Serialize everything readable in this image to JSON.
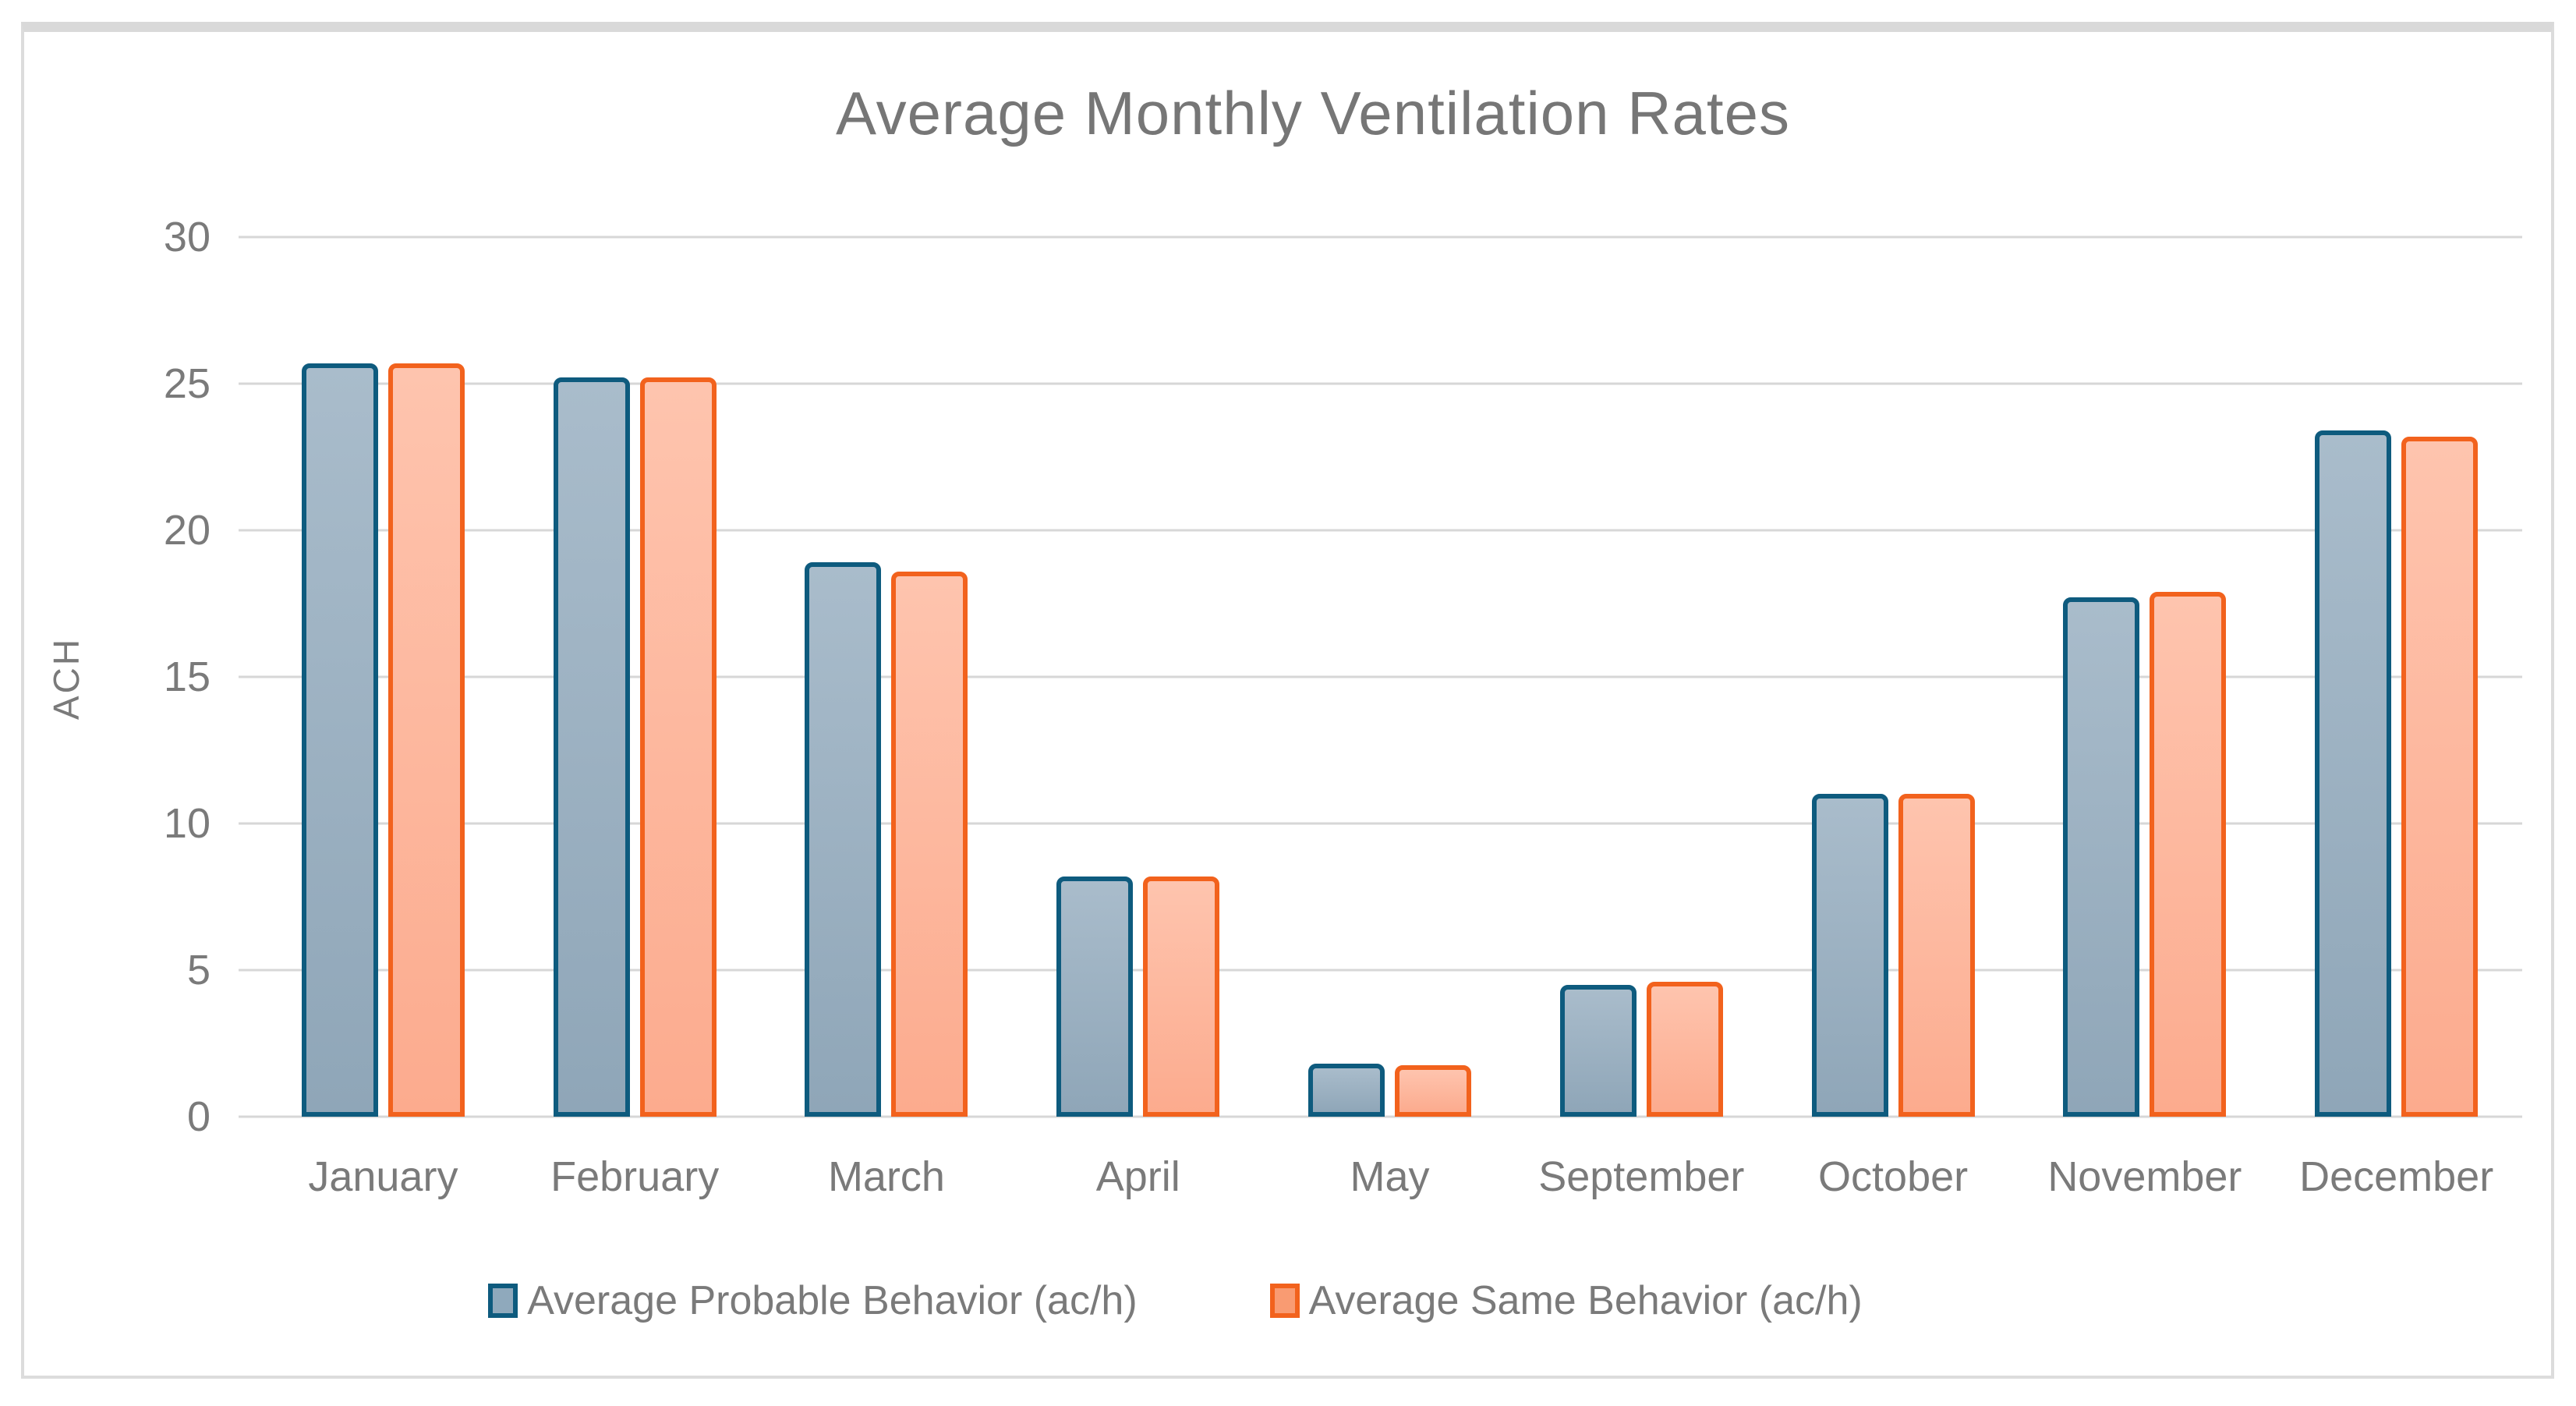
{
  "figure": {
    "frame_border_color": "#DCDCDC",
    "background": "#FFFFFF"
  },
  "chart_data": {
    "type": "bar",
    "title": "Average Monthly Ventilation Rates",
    "xlabel": "",
    "ylabel": "ACH",
    "ylim": [
      0,
      30
    ],
    "yticks": [
      0,
      5,
      10,
      15,
      20,
      25,
      30
    ],
    "grid": true,
    "legend_position": "bottom",
    "categories": [
      "January",
      "February",
      "March",
      "April",
      "May",
      "September",
      "October",
      "November",
      "December"
    ],
    "series": [
      {
        "name": "Average Probable Behavior (ac/h)",
        "values": [
          25.7,
          25.2,
          18.9,
          8.2,
          1.8,
          4.5,
          11.0,
          17.7,
          23.4
        ],
        "border_color": "#0E5B7E",
        "fill_top": "#A9BCCB",
        "fill_bottom": "#8FA6B8",
        "legend_fill": "#8FA9BC"
      },
      {
        "name": "Average Same Behavior (ac/h)",
        "values": [
          25.7,
          25.2,
          18.6,
          8.2,
          1.75,
          4.6,
          11.0,
          17.9,
          23.2
        ],
        "border_color": "#F2621D",
        "fill_top": "#FEC4AE",
        "fill_bottom": "#FCAB8E",
        "legend_fill": "#F99B72"
      }
    ],
    "colors": {
      "gridline": "#D7D7D7",
      "axis_text": "#7A7A7A",
      "title_text": "#767676"
    }
  }
}
